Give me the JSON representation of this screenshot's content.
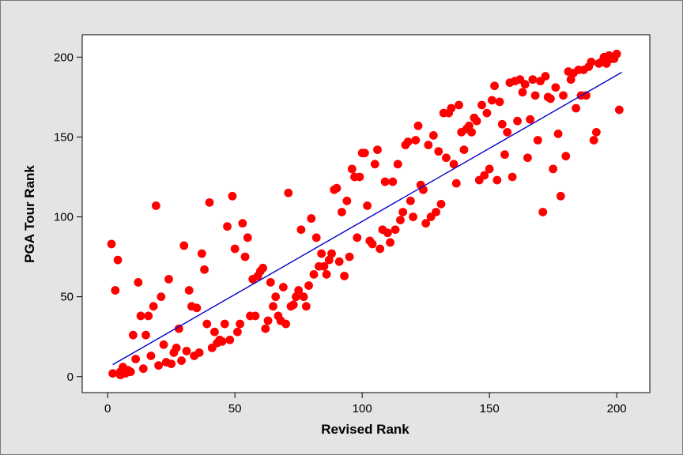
{
  "colors": {
    "background": "#e4e4e4",
    "plot_area": "#ffffff",
    "points": "#ff0000",
    "fit_line": "#0000cc"
  },
  "chart_data": {
    "type": "scatter",
    "title": "",
    "xlabel": "Revised Rank",
    "ylabel": "PGA Tour Rank",
    "xlim": [
      -10,
      213
    ],
    "ylim": [
      -10,
      214
    ],
    "x_ticks": [
      0,
      50,
      100,
      150,
      200
    ],
    "y_ticks": [
      0,
      50,
      100,
      150,
      200
    ],
    "grid": false,
    "legend": "none",
    "fit_line": {
      "x": [
        2,
        202
      ],
      "y": [
        7.5,
        190.5
      ]
    },
    "points": [
      [
        1.5,
        83
      ],
      [
        2,
        2
      ],
      [
        3,
        54
      ],
      [
        4,
        73
      ],
      [
        5,
        1
      ],
      [
        5,
        3
      ],
      [
        6,
        6
      ],
      [
        7,
        2
      ],
      [
        8,
        4
      ],
      [
        9,
        3
      ],
      [
        10,
        26
      ],
      [
        11,
        11
      ],
      [
        12,
        59
      ],
      [
        13,
        38
      ],
      [
        14,
        5
      ],
      [
        15,
        26
      ],
      [
        16,
        38
      ],
      [
        17,
        13
      ],
      [
        18,
        44
      ],
      [
        19,
        107
      ],
      [
        20,
        7
      ],
      [
        21,
        50
      ],
      [
        22,
        20
      ],
      [
        23,
        9
      ],
      [
        24,
        61
      ],
      [
        25,
        8
      ],
      [
        26,
        15
      ],
      [
        27,
        18
      ],
      [
        28,
        30
      ],
      [
        29,
        10
      ],
      [
        30,
        82
      ],
      [
        31,
        16
      ],
      [
        32,
        54
      ],
      [
        33,
        44
      ],
      [
        34,
        13
      ],
      [
        35,
        43
      ],
      [
        36,
        15
      ],
      [
        37,
        77
      ],
      [
        38,
        67
      ],
      [
        39,
        33
      ],
      [
        40,
        109
      ],
      [
        41,
        18
      ],
      [
        42,
        28
      ],
      [
        43,
        21
      ],
      [
        44,
        23
      ],
      [
        45,
        22
      ],
      [
        46,
        33
      ],
      [
        47,
        94
      ],
      [
        48,
        23
      ],
      [
        49,
        113
      ],
      [
        50,
        80
      ],
      [
        51,
        28
      ],
      [
        52,
        33
      ],
      [
        53,
        96
      ],
      [
        54,
        75
      ],
      [
        55,
        87
      ],
      [
        56,
        38
      ],
      [
        57,
        61
      ],
      [
        58,
        38
      ],
      [
        59,
        63
      ],
      [
        60,
        66
      ],
      [
        61,
        68
      ],
      [
        62,
        30
      ],
      [
        63,
        35
      ],
      [
        64,
        59
      ],
      [
        65,
        44
      ],
      [
        66,
        50
      ],
      [
        67,
        38
      ],
      [
        68,
        35
      ],
      [
        69,
        56
      ],
      [
        70,
        33
      ],
      [
        71,
        115
      ],
      [
        72,
        44
      ],
      [
        73,
        45
      ],
      [
        74,
        50
      ],
      [
        75,
        54
      ],
      [
        76,
        92
      ],
      [
        77,
        50
      ],
      [
        78,
        44
      ],
      [
        79,
        57
      ],
      [
        80,
        99
      ],
      [
        81,
        64
      ],
      [
        82,
        87
      ],
      [
        83,
        69
      ],
      [
        84,
        77
      ],
      [
        85,
        69
      ],
      [
        86,
        64
      ],
      [
        87,
        73
      ],
      [
        88,
        77
      ],
      [
        89,
        117
      ],
      [
        90,
        118
      ],
      [
        91,
        72
      ],
      [
        92,
        103
      ],
      [
        93,
        63
      ],
      [
        94,
        110
      ],
      [
        95,
        75
      ],
      [
        96,
        130
      ],
      [
        97,
        125
      ],
      [
        98,
        87
      ],
      [
        99,
        125
      ],
      [
        100,
        140
      ],
      [
        101,
        140
      ],
      [
        102,
        107
      ],
      [
        103,
        85
      ],
      [
        104,
        83
      ],
      [
        105,
        133
      ],
      [
        106,
        142
      ],
      [
        107,
        80
      ],
      [
        108,
        92
      ],
      [
        109,
        122
      ],
      [
        110,
        90
      ],
      [
        111,
        84
      ],
      [
        112,
        122
      ],
      [
        113,
        92
      ],
      [
        114,
        133
      ],
      [
        115,
        98
      ],
      [
        116,
        103
      ],
      [
        117,
        145
      ],
      [
        118,
        147
      ],
      [
        119,
        110
      ],
      [
        120,
        100
      ],
      [
        121,
        148
      ],
      [
        122,
        157
      ],
      [
        123,
        120
      ],
      [
        124,
        117
      ],
      [
        125,
        96
      ],
      [
        126,
        145
      ],
      [
        127,
        100
      ],
      [
        128,
        151
      ],
      [
        129,
        103
      ],
      [
        130,
        141
      ],
      [
        131,
        108
      ],
      [
        132,
        165
      ],
      [
        133,
        137
      ],
      [
        134,
        165
      ],
      [
        135,
        168
      ],
      [
        136,
        133
      ],
      [
        137,
        121
      ],
      [
        138,
        170
      ],
      [
        139,
        153
      ],
      [
        140,
        142
      ],
      [
        141,
        155
      ],
      [
        142,
        157
      ],
      [
        143,
        153
      ],
      [
        144,
        162
      ],
      [
        145,
        160
      ],
      [
        146,
        123
      ],
      [
        147,
        170
      ],
      [
        148,
        126
      ],
      [
        149,
        165
      ],
      [
        150,
        130
      ],
      [
        151,
        173
      ],
      [
        152,
        182
      ],
      [
        153,
        123
      ],
      [
        154,
        172
      ],
      [
        155,
        158
      ],
      [
        156,
        139
      ],
      [
        157,
        153
      ],
      [
        158,
        184
      ],
      [
        159,
        125
      ],
      [
        160,
        185
      ],
      [
        161,
        160
      ],
      [
        162,
        186
      ],
      [
        163,
        178
      ],
      [
        164,
        183
      ],
      [
        165,
        137
      ],
      [
        166,
        161
      ],
      [
        167,
        186
      ],
      [
        168,
        176
      ],
      [
        169,
        148
      ],
      [
        170,
        185
      ],
      [
        171,
        103
      ],
      [
        172,
        188
      ],
      [
        173,
        175
      ],
      [
        174,
        174
      ],
      [
        175,
        130
      ],
      [
        176,
        181
      ],
      [
        177,
        152
      ],
      [
        178,
        113
      ],
      [
        179,
        176
      ],
      [
        180,
        138
      ],
      [
        181,
        191
      ],
      [
        182,
        186
      ],
      [
        183,
        190
      ],
      [
        184,
        168
      ],
      [
        185,
        192
      ],
      [
        186,
        176
      ],
      [
        187,
        192
      ],
      [
        188,
        176
      ],
      [
        189,
        194
      ],
      [
        190,
        197
      ],
      [
        191,
        148
      ],
      [
        192,
        153
      ],
      [
        193,
        196
      ],
      [
        194,
        197
      ],
      [
        195,
        200
      ],
      [
        196,
        196
      ],
      [
        197,
        201
      ],
      [
        198,
        199
      ],
      [
        199,
        199
      ],
      [
        200,
        202
      ],
      [
        201,
        167
      ]
    ]
  }
}
